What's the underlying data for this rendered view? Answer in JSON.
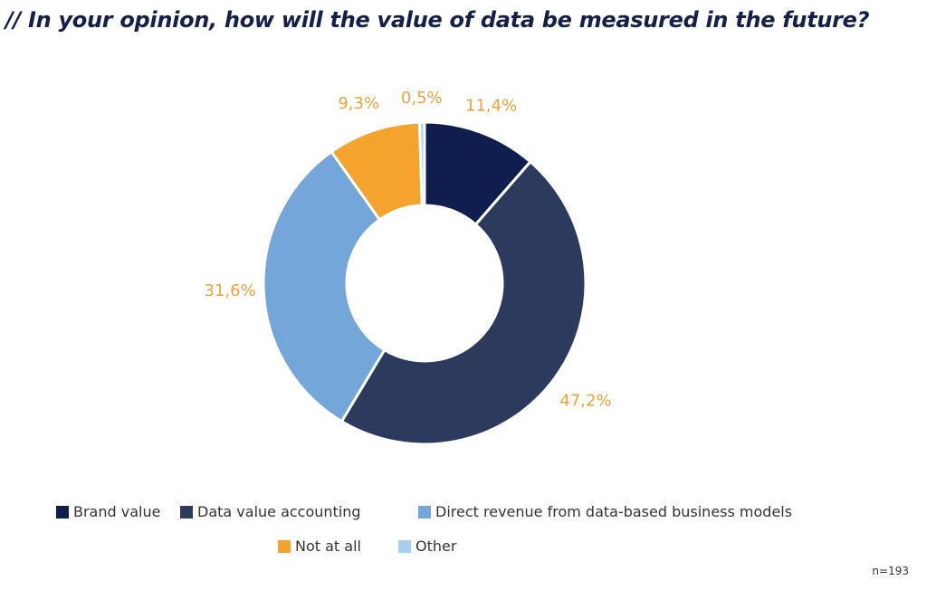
{
  "title": "// In your opinion, how will the value of data be measured in the future?",
  "sample_size": "n=193",
  "chart_data": {
    "type": "pie",
    "donut": true,
    "slices": [
      {
        "name": "Brand value",
        "value": 11.4,
        "label": "11,4%",
        "color": "#0f1d4f"
      },
      {
        "name": "Data value accounting",
        "value": 47.2,
        "label": "47,2%",
        "color": "#2c3a5d"
      },
      {
        "name": "Direct revenue from data-based business models",
        "value": 31.6,
        "label": "31,6%",
        "color": "#74a6d9"
      },
      {
        "name": "Not at all",
        "value": 9.3,
        "label": "9,3%",
        "color": "#f3a32e"
      },
      {
        "name": "Other",
        "value": 0.5,
        "label": "0,5%",
        "color": "#a9cfee"
      }
    ],
    "label_color": "#f0a23a",
    "legend_position": "bottom"
  }
}
